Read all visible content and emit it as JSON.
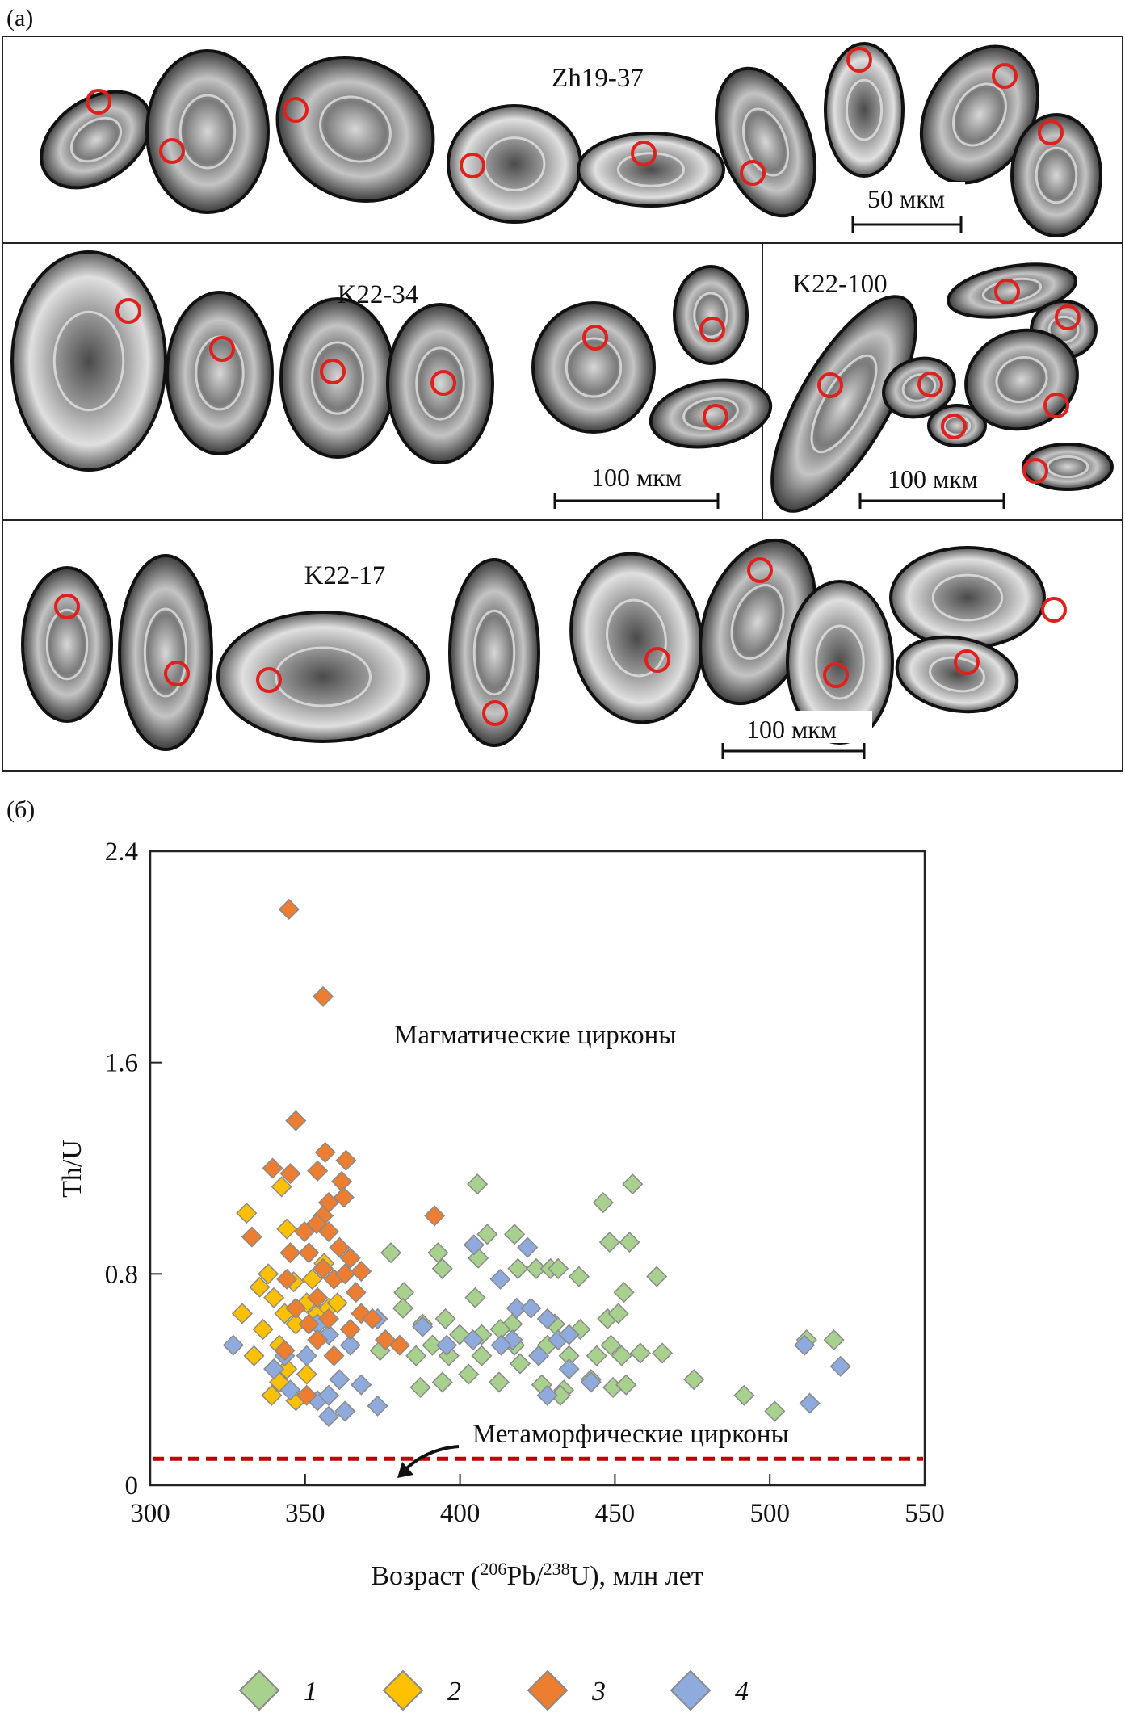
{
  "panel_a": {
    "label": "(a)",
    "samples": [
      {
        "name": "Zh19-37",
        "scale_bar": "50 мкм"
      },
      {
        "name": "K22-34",
        "scale_bar": "100 мкм"
      },
      {
        "name": "K22-100",
        "scale_bar": "100 мкм"
      },
      {
        "name": "K22-17",
        "scale_bar": "100 мкм"
      }
    ],
    "spot_color": "#e0201c"
  },
  "panel_b": {
    "label": "(б)"
  },
  "chart_data": {
    "type": "scatter",
    "title": "",
    "xlabel": "Возраст (206Pb/238U), млн лет",
    "xlabel_parts": {
      "pre": "Возраст (",
      "sup1": "206",
      "mid": "Pb/",
      "sup2": "238",
      "post": "U), млн лет"
    },
    "ylabel": "Th/U",
    "xlim": [
      300,
      550
    ],
    "ylim": [
      0,
      2.4
    ],
    "xticks": [
      "300",
      "350",
      "400",
      "450",
      "500",
      "550"
    ],
    "yticks": [
      "0",
      "0.8",
      "1.6",
      "2.4"
    ],
    "grid": false,
    "marker": "diamond",
    "annotations": {
      "magmatic": "Магматические цирконы",
      "metamorphic": "Метаморфические цирконы"
    },
    "threshold_line": {
      "y": 0.1,
      "color": "#c00000",
      "style": "dashed"
    },
    "legend_position": "bottom",
    "series": [
      {
        "name": "1",
        "color": "#a9d18e",
        "points": [
          [
            377.7,
            0.88
          ],
          [
            381.9,
            0.73
          ],
          [
            381.6,
            0.67
          ],
          [
            392.9,
            0.88
          ],
          [
            394.3,
            0.82
          ],
          [
            405.6,
            1.14
          ],
          [
            405.9,
            0.86
          ],
          [
            408.8,
            0.95
          ],
          [
            417.6,
            0.95
          ],
          [
            418.7,
            0.82
          ],
          [
            424.6,
            0.82
          ],
          [
            429.2,
            0.82
          ],
          [
            431.7,
            0.82
          ],
          [
            446.2,
            1.07
          ],
          [
            455.7,
            1.14
          ],
          [
            448.3,
            0.92
          ],
          [
            454.7,
            0.92
          ],
          [
            463.5,
            0.79
          ],
          [
            438.4,
            0.79
          ],
          [
            387.9,
            0.61
          ],
          [
            391.1,
            0.53
          ],
          [
            395.3,
            0.63
          ],
          [
            399.9,
            0.57
          ],
          [
            404.9,
            0.71
          ],
          [
            416.9,
            0.61
          ],
          [
            407.0,
            0.49
          ],
          [
            419.4,
            0.46
          ],
          [
            428.2,
            0.53
          ],
          [
            435.2,
            0.49
          ],
          [
            447.6,
            0.63
          ],
          [
            451.1,
            0.65
          ],
          [
            452.9,
            0.73
          ],
          [
            448.7,
            0.53
          ],
          [
            452.2,
            0.49
          ],
          [
            458.2,
            0.5
          ],
          [
            465.3,
            0.5
          ],
          [
            475.5,
            0.4
          ],
          [
            491.7,
            0.34
          ],
          [
            501.6,
            0.28
          ],
          [
            511.9,
            0.55
          ],
          [
            520.7,
            0.55
          ],
          [
            387.2,
            0.37
          ],
          [
            394.3,
            0.39
          ],
          [
            402.8,
            0.42
          ],
          [
            412.6,
            0.39
          ],
          [
            426.4,
            0.38
          ],
          [
            433.5,
            0.36
          ],
          [
            449.4,
            0.37
          ],
          [
            453.6,
            0.38
          ],
          [
            374.2,
            0.51
          ],
          [
            385.8,
            0.49
          ],
          [
            396.4,
            0.49
          ],
          [
            407.0,
            0.57
          ],
          [
            413.0,
            0.59
          ],
          [
            430.6,
            0.61
          ],
          [
            438.8,
            0.59
          ],
          [
            442.3,
            0.4
          ],
          [
            444.1,
            0.49
          ],
          [
            432.4,
            0.34
          ],
          [
            417.6,
            0.53
          ]
        ]
      },
      {
        "name": "2",
        "color": "#ffc000",
        "points": [
          [
            331.1,
            1.03
          ],
          [
            342.4,
            1.13
          ],
          [
            344.1,
            0.97
          ],
          [
            329.7,
            0.65
          ],
          [
            335.3,
            0.75
          ],
          [
            338.1,
            0.8
          ],
          [
            339.9,
            0.71
          ],
          [
            343.4,
            0.65
          ],
          [
            346.3,
            0.77
          ],
          [
            336.4,
            0.59
          ],
          [
            341.7,
            0.53
          ],
          [
            347.0,
            0.61
          ],
          [
            350.5,
            0.69
          ],
          [
            354.0,
            0.65
          ],
          [
            333.5,
            0.49
          ],
          [
            344.1,
            0.44
          ],
          [
            339.2,
            0.34
          ],
          [
            341.7,
            0.39
          ],
          [
            350.5,
            0.42
          ],
          [
            347.0,
            0.32
          ],
          [
            352.3,
            0.78
          ],
          [
            357.6,
            0.67
          ],
          [
            356.1,
            0.84
          ],
          [
            360.4,
            0.69
          ]
        ]
      },
      {
        "name": "3",
        "color": "#ed7d31",
        "points": [
          [
            344.8,
            2.18
          ],
          [
            355.8,
            1.85
          ],
          [
            347.0,
            1.38
          ],
          [
            356.5,
            1.26
          ],
          [
            363.2,
            1.23
          ],
          [
            339.5,
            1.2
          ],
          [
            345.2,
            1.18
          ],
          [
            354.0,
            1.19
          ],
          [
            361.8,
            1.15
          ],
          [
            362.5,
            1.09
          ],
          [
            357.6,
            1.07
          ],
          [
            355.8,
            1.02
          ],
          [
            353.7,
            0.99
          ],
          [
            349.8,
            0.96
          ],
          [
            332.8,
            0.94
          ],
          [
            345.2,
            0.88
          ],
          [
            351.2,
            0.88
          ],
          [
            357.6,
            0.96
          ],
          [
            361.1,
            0.9
          ],
          [
            364.6,
            0.86
          ],
          [
            368.1,
            0.81
          ],
          [
            355.8,
            0.82
          ],
          [
            359.3,
            0.78
          ],
          [
            368.1,
            0.65
          ],
          [
            375.9,
            0.55
          ],
          [
            391.8,
            1.02
          ],
          [
            380.5,
            0.53
          ],
          [
            354.0,
            0.71
          ],
          [
            351.2,
            0.61
          ],
          [
            347.0,
            0.67
          ],
          [
            357.6,
            0.63
          ],
          [
            343.4,
            0.51
          ],
          [
            359.3,
            0.49
          ],
          [
            364.6,
            0.59
          ],
          [
            371.7,
            0.63
          ],
          [
            350.5,
            0.34
          ],
          [
            354.0,
            0.55
          ],
          [
            362.9,
            0.8
          ],
          [
            344.1,
            0.78
          ],
          [
            366.4,
            0.73
          ]
        ]
      },
      {
        "name": "4",
        "color": "#8faadc",
        "points": [
          [
            326.8,
            0.53
          ],
          [
            339.9,
            0.44
          ],
          [
            345.2,
            0.36
          ],
          [
            354.0,
            0.32
          ],
          [
            357.6,
            0.34
          ],
          [
            361.1,
            0.4
          ],
          [
            350.5,
            0.49
          ],
          [
            357.6,
            0.57
          ],
          [
            364.6,
            0.53
          ],
          [
            373.4,
            0.63
          ],
          [
            375.9,
            0.55
          ],
          [
            373.4,
            0.3
          ],
          [
            404.5,
            0.91
          ],
          [
            413.0,
            0.78
          ],
          [
            418.3,
            0.67
          ],
          [
            421.8,
            0.9
          ],
          [
            422.9,
            0.67
          ],
          [
            428.2,
            0.63
          ],
          [
            431.7,
            0.55
          ],
          [
            435.2,
            0.57
          ],
          [
            416.9,
            0.55
          ],
          [
            404.2,
            0.55
          ],
          [
            395.7,
            0.53
          ],
          [
            428.2,
            0.34
          ],
          [
            435.2,
            0.44
          ],
          [
            442.3,
            0.39
          ],
          [
            511.2,
            0.53
          ],
          [
            512.9,
            0.31
          ],
          [
            522.8,
            0.45
          ],
          [
            357.6,
            0.26
          ],
          [
            343.4,
            0.49
          ],
          [
            368.1,
            0.38
          ],
          [
            362.9,
            0.28
          ],
          [
            354.0,
            0.61
          ],
          [
            425.4,
            0.49
          ],
          [
            413.3,
            0.53
          ],
          [
            387.9,
            0.6
          ]
        ]
      }
    ]
  }
}
